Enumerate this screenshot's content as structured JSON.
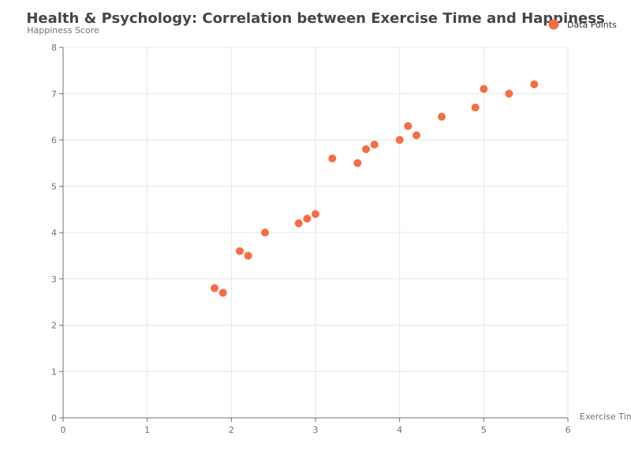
{
  "chart_data": {
    "type": "scatter",
    "title": "Health & Psychology: Correlation between Exercise Time and Happiness",
    "xlabel": "Exercise Time (hours/week)",
    "ylabel": "Happiness Score",
    "xlim": [
      0,
      6
    ],
    "ylim": [
      0,
      8
    ],
    "x_ticks": [
      "0",
      "1",
      "2",
      "3",
      "4",
      "5",
      "6"
    ],
    "y_ticks": [
      "0",
      "1",
      "2",
      "3",
      "4",
      "5",
      "6",
      "7",
      "8"
    ],
    "grid": true,
    "legend_position": "top-right",
    "series": [
      {
        "name": "Data Points",
        "color": "#f46d43",
        "points": [
          {
            "x": 1.8,
            "y": 2.8
          },
          {
            "x": 1.9,
            "y": 2.7
          },
          {
            "x": 2.1,
            "y": 3.6
          },
          {
            "x": 2.2,
            "y": 3.5
          },
          {
            "x": 2.4,
            "y": 4.0
          },
          {
            "x": 2.8,
            "y": 4.2
          },
          {
            "x": 2.9,
            "y": 4.3
          },
          {
            "x": 3.0,
            "y": 4.4
          },
          {
            "x": 3.2,
            "y": 5.6
          },
          {
            "x": 3.5,
            "y": 5.5
          },
          {
            "x": 3.6,
            "y": 5.8
          },
          {
            "x": 3.7,
            "y": 5.9
          },
          {
            "x": 4.0,
            "y": 6.0
          },
          {
            "x": 4.1,
            "y": 6.3
          },
          {
            "x": 4.2,
            "y": 6.1
          },
          {
            "x": 4.5,
            "y": 6.5
          },
          {
            "x": 4.9,
            "y": 6.7
          },
          {
            "x": 5.0,
            "y": 7.1
          },
          {
            "x": 5.3,
            "y": 7.0
          },
          {
            "x": 5.6,
            "y": 7.2
          }
        ]
      }
    ]
  }
}
